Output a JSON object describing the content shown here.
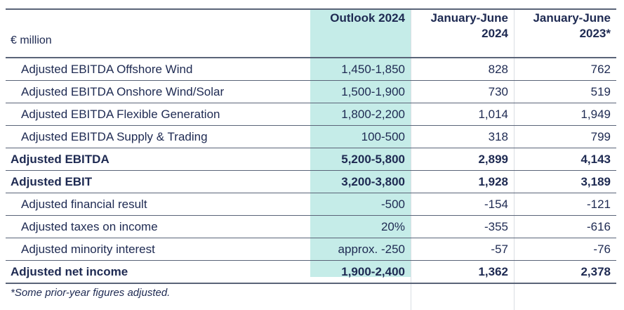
{
  "table": {
    "unit_label": "€ million",
    "columns": [
      {
        "line1": "Outlook 2024",
        "line2": ""
      },
      {
        "line1": "January-June",
        "line2": "2024"
      },
      {
        "line1": "January-June",
        "line2": "2023*"
      }
    ],
    "rows": [
      {
        "label": "Adjusted EBITDA Offshore Wind",
        "bold": false,
        "values": [
          "1,450-1,850",
          "828",
          "762"
        ]
      },
      {
        "label": "Adjusted EBITDA Onshore Wind/Solar",
        "bold": false,
        "values": [
          "1,500-1,900",
          "730",
          "519"
        ]
      },
      {
        "label": "Adjusted EBITDA Flexible Generation",
        "bold": false,
        "values": [
          "1,800-2,200",
          "1,014",
          "1,949"
        ]
      },
      {
        "label": "Adjusted EBITDA Supply & Trading",
        "bold": false,
        "values": [
          "100-500",
          "318",
          "799"
        ]
      },
      {
        "label": "Adjusted EBITDA",
        "bold": true,
        "values": [
          "5,200-5,800",
          "2,899",
          "4,143"
        ]
      },
      {
        "label": "Adjusted EBIT",
        "bold": true,
        "values": [
          "3,200-3,800",
          "1,928",
          "3,189"
        ]
      },
      {
        "label": "Adjusted financial result",
        "bold": false,
        "values": [
          "-500",
          "-154",
          "-121"
        ]
      },
      {
        "label": "Adjusted taxes on income",
        "bold": false,
        "values": [
          "20%",
          "-355",
          "-616"
        ]
      },
      {
        "label": "Adjusted minority interest",
        "bold": false,
        "values": [
          "approx. -250",
          "-57",
          "-76"
        ]
      },
      {
        "label": "Adjusted net income",
        "bold": true,
        "values": [
          "1,900-2,400",
          "1,362",
          "2,378"
        ]
      }
    ]
  },
  "footnote": "*Some prior-year figures adjusted.",
  "colors": {
    "text": "#1e2a52",
    "highlight": "#c5ece8",
    "rule": "#5a6478"
  }
}
